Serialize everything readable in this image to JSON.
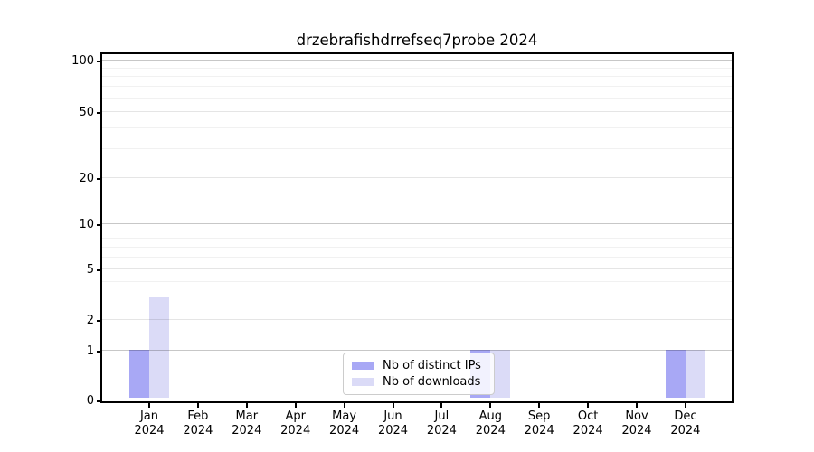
{
  "chart_data": {
    "type": "bar",
    "title": "drzebrafishdrrefseq7probe 2024",
    "categories": [
      "Jan 2024",
      "Feb 2024",
      "Mar 2024",
      "Apr 2024",
      "May 2024",
      "Jun 2024",
      "Jul 2024",
      "Aug 2024",
      "Sep 2024",
      "Oct 2024",
      "Nov 2024",
      "Dec 2024"
    ],
    "series": [
      {
        "name": "Nb of distinct IPs",
        "color": "#a8a8f5",
        "values": [
          1,
          0,
          0,
          0,
          0,
          0,
          0,
          1,
          0,
          0,
          0,
          1
        ]
      },
      {
        "name": "Nb of downloads",
        "color": "#dbdbf7",
        "values": [
          3,
          0,
          0,
          0,
          0,
          0,
          0,
          1,
          0,
          0,
          0,
          1
        ]
      }
    ],
    "xlabel": "",
    "ylabel": "",
    "yscale": "log-like",
    "yticks": [
      0,
      1,
      2,
      5,
      10,
      20,
      50,
      100
    ],
    "minor_yticks": [
      3,
      4,
      6,
      7,
      8,
      9,
      30,
      40,
      60,
      70,
      80,
      90
    ],
    "ylim": [
      0,
      120
    ],
    "grid": "horizontal",
    "legend_position": "bottom-center",
    "colors": {
      "axis": "#000000",
      "background": "#ffffff",
      "grid_major": "rgba(0,0,0,0.22)",
      "grid_mid": "rgba(0,0,0,0.10)",
      "grid_minor": "rgba(0,0,0,0.055)"
    }
  }
}
